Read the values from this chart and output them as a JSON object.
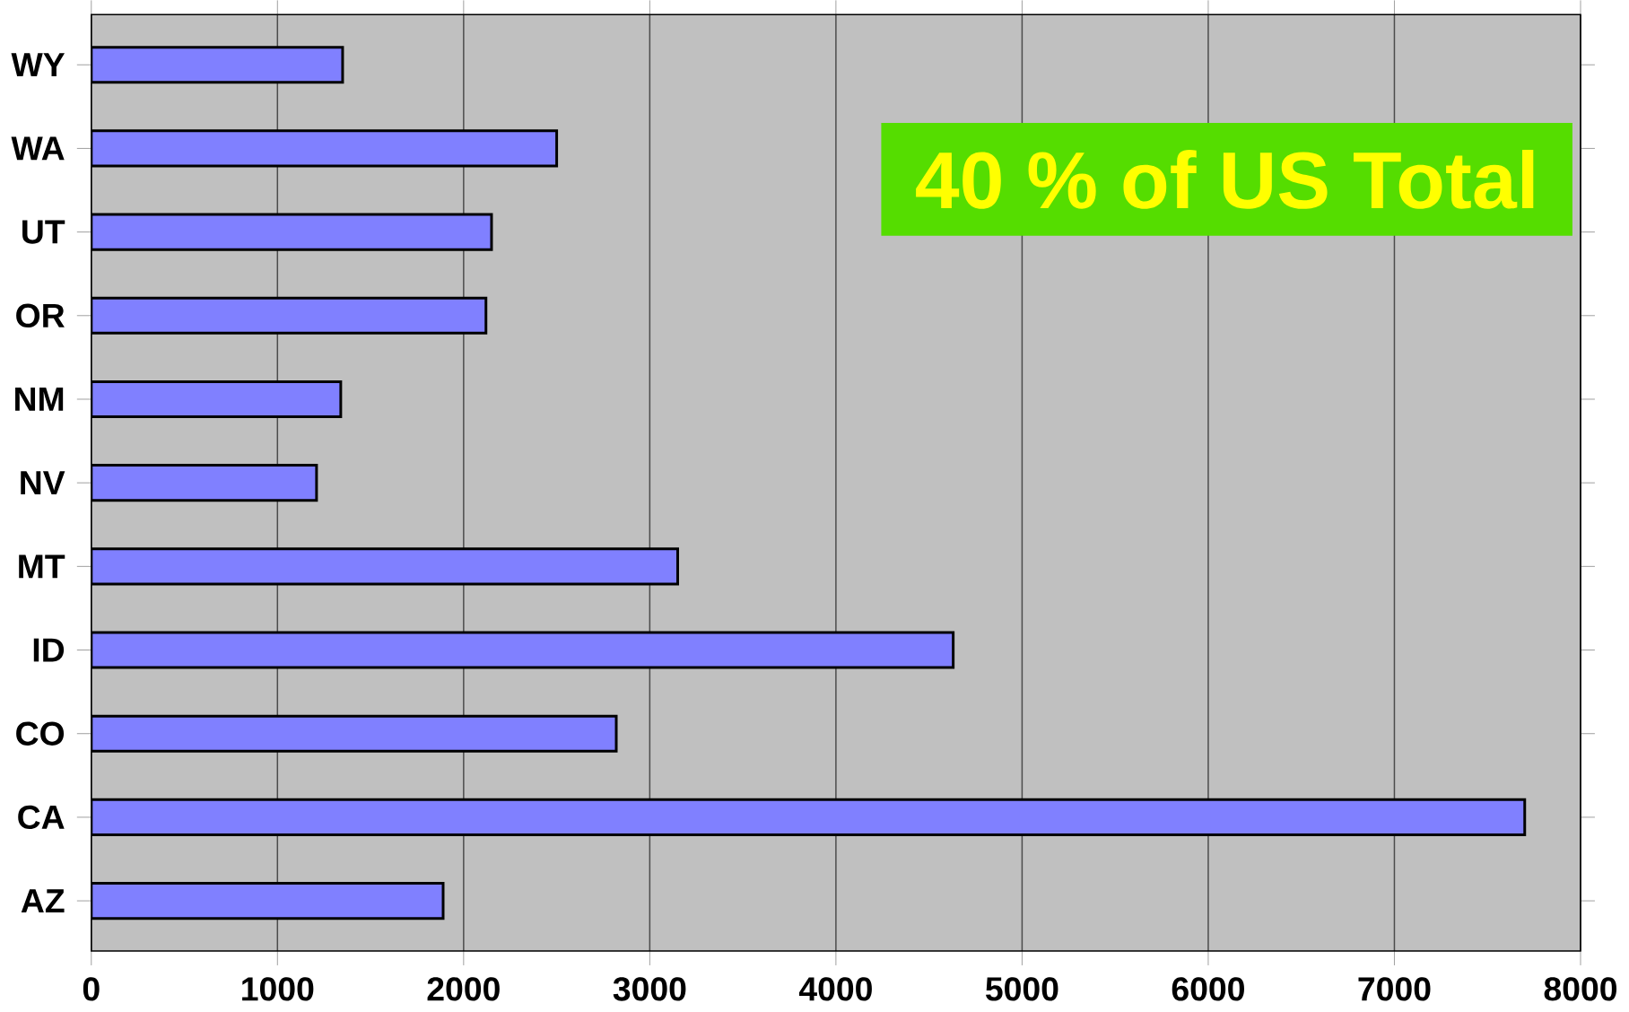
{
  "chart_data": {
    "type": "bar",
    "orientation": "horizontal",
    "categories": [
      "WY",
      "WA",
      "UT",
      "OR",
      "NM",
      "NV",
      "MT",
      "ID",
      "CO",
      "CA",
      "AZ"
    ],
    "values": [
      1350,
      2500,
      2150,
      2120,
      1340,
      1210,
      3150,
      4630,
      2820,
      7700,
      1890
    ],
    "color": "#8080ff",
    "xlim": [
      0,
      8000
    ],
    "xticks": [
      0,
      1000,
      2000,
      3000,
      4000,
      5000,
      6000,
      7000,
      8000
    ],
    "grid": "x",
    "annotations": [
      "40 % of US Total"
    ]
  }
}
